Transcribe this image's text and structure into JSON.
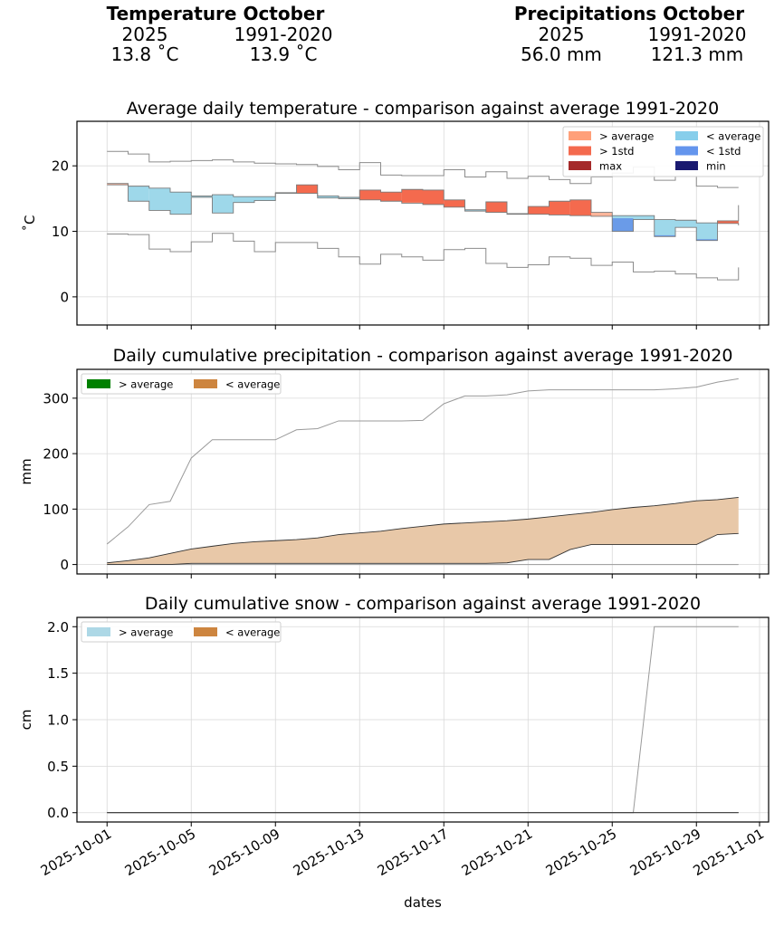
{
  "header": {
    "temperature": {
      "title": "Temperature October",
      "col_current": "2025",
      "col_reference": "1991-2020",
      "val_current": "13.8 ˚C",
      "val_reference": "13.9 ˚C"
    },
    "precipitation": {
      "title": "Precipitations October",
      "col_current": "2025",
      "col_reference": "1991-2020",
      "val_current": "56.0 mm",
      "val_reference": "121.3 mm"
    }
  },
  "chart_data": [
    {
      "type": "line",
      "title": "Average daily temperature - comparison against average 1991-2020",
      "xlabel": "",
      "ylabel": "˚C",
      "x": [
        "2025-10-01",
        "2025-10-02",
        "2025-10-03",
        "2025-10-04",
        "2025-10-05",
        "2025-10-06",
        "2025-10-07",
        "2025-10-08",
        "2025-10-09",
        "2025-10-10",
        "2025-10-11",
        "2025-10-12",
        "2025-10-13",
        "2025-10-14",
        "2025-10-15",
        "2025-10-16",
        "2025-10-17",
        "2025-10-18",
        "2025-10-19",
        "2025-10-20",
        "2025-10-21",
        "2025-10-22",
        "2025-10-23",
        "2025-10-24",
        "2025-10-25",
        "2025-10-26",
        "2025-10-27",
        "2025-10-28",
        "2025-10-29",
        "2025-10-30",
        "2025-10-31"
      ],
      "yticks": [
        0,
        10,
        20
      ],
      "ylim": [
        -4.3,
        26.8
      ],
      "grid": true,
      "legend_position": "top-right",
      "legend": [
        {
          "label": "> average",
          "color": "#FFA07A"
        },
        {
          "label": "< average",
          "color": "#87CEEB"
        },
        {
          "label": "> 1std",
          "color": "#F46A4E"
        },
        {
          "label": "< 1std",
          "color": "#6495ED"
        },
        {
          "label": "max",
          "color": "#A52A2A"
        },
        {
          "label": "min",
          "color": "#191970"
        }
      ],
      "series": [
        {
          "name": "2025",
          "values": [
            17.3,
            14.6,
            13.2,
            12.6,
            15.2,
            12.8,
            14.4,
            14.7,
            15.8,
            17.1,
            15.1,
            15.0,
            16.3,
            16.0,
            16.4,
            16.3,
            14.8,
            13.1,
            14.5,
            12.7,
            13.8,
            14.6,
            14.8,
            12.9,
            10.0,
            11.8,
            9.2,
            10.6,
            8.6,
            11.6,
            14.0
          ]
        },
        {
          "name": "average 1991-2020",
          "values": [
            17.1,
            16.9,
            16.6,
            16.0,
            15.4,
            15.6,
            15.3,
            15.3,
            15.9,
            15.8,
            15.4,
            15.2,
            14.8,
            14.6,
            14.3,
            14.1,
            13.7,
            13.3,
            12.9,
            12.6,
            12.6,
            12.5,
            12.4,
            12.3,
            12.4,
            12.4,
            11.8,
            11.7,
            11.3,
            11.2,
            10.9
          ]
        },
        {
          "name": "avg + 1std",
          "values": [
            17.3,
            16.9,
            16.7,
            16.0,
            15.4,
            15.6,
            15.4,
            15.3,
            15.9,
            15.8,
            15.4,
            15.2,
            14.8,
            14.6,
            14.4,
            14.1,
            13.7,
            13.3,
            12.9,
            12.6,
            12.6,
            12.5,
            12.4,
            12.9,
            12.6,
            12.4,
            11.8,
            11.7,
            11.3,
            11.2,
            10.9
          ]
        },
        {
          "name": "avg - 1std",
          "values": [
            17.1,
            14.6,
            13.2,
            12.6,
            15.2,
            12.8,
            14.4,
            14.7,
            15.8,
            15.8,
            15.1,
            15.0,
            14.8,
            14.6,
            14.3,
            14.1,
            13.7,
            13.1,
            12.9,
            12.6,
            12.6,
            12.5,
            12.4,
            12.3,
            12.0,
            11.8,
            9.4,
            10.6,
            8.8,
            11.2,
            10.9
          ]
        },
        {
          "name": "max",
          "values": [
            22.2,
            21.8,
            20.6,
            20.7,
            20.8,
            20.9,
            20.6,
            20.4,
            20.3,
            20.2,
            19.9,
            19.4,
            20.5,
            18.6,
            18.5,
            18.5,
            19.4,
            18.3,
            19.1,
            18.1,
            18.4,
            17.9,
            17.3,
            18.3,
            18.9,
            19.8,
            17.8,
            18.4,
            16.9,
            16.7,
            16.7
          ]
        },
        {
          "name": "min",
          "values": [
            9.6,
            9.5,
            7.3,
            6.9,
            8.4,
            9.7,
            8.5,
            6.9,
            8.3,
            8.3,
            7.4,
            6.1,
            5.0,
            6.5,
            6.1,
            5.6,
            7.2,
            7.4,
            5.1,
            4.5,
            4.9,
            6.1,
            5.9,
            4.8,
            5.3,
            3.8,
            3.9,
            3.5,
            2.9,
            2.6,
            4.5
          ]
        }
      ]
    },
    {
      "type": "area",
      "title": "Daily cumulative precipitation - comparison against average 1991-2020",
      "xlabel": "",
      "ylabel": "mm",
      "x": [
        "2025-10-01",
        "2025-10-02",
        "2025-10-03",
        "2025-10-04",
        "2025-10-05",
        "2025-10-06",
        "2025-10-07",
        "2025-10-08",
        "2025-10-09",
        "2025-10-10",
        "2025-10-11",
        "2025-10-12",
        "2025-10-13",
        "2025-10-14",
        "2025-10-15",
        "2025-10-16",
        "2025-10-17",
        "2025-10-18",
        "2025-10-19",
        "2025-10-20",
        "2025-10-21",
        "2025-10-22",
        "2025-10-23",
        "2025-10-24",
        "2025-10-25",
        "2025-10-26",
        "2025-10-27",
        "2025-10-28",
        "2025-10-29",
        "2025-10-30",
        "2025-10-31"
      ],
      "yticks": [
        0,
        100,
        200,
        300
      ],
      "ylim": [
        -17,
        352
      ],
      "grid": true,
      "legend_position": "top-left",
      "legend": [
        {
          "label": "> average",
          "color": "#008000"
        },
        {
          "label": "< average",
          "color": "#CD853F"
        }
      ],
      "series": [
        {
          "name": "2025",
          "values": [
            0,
            0,
            0,
            0,
            2,
            2,
            2,
            2,
            2,
            2,
            2,
            2,
            2,
            2,
            2,
            2,
            2,
            2,
            2,
            3,
            9,
            9,
            27,
            36,
            36,
            36,
            36,
            36,
            36,
            54,
            56
          ]
        },
        {
          "name": "average 1991-2020",
          "values": [
            3,
            7,
            12,
            20,
            28,
            33,
            38,
            41,
            43,
            45,
            48,
            54,
            57,
            60,
            65,
            69,
            73,
            75,
            77,
            79,
            82,
            86,
            90,
            94,
            99,
            103,
            106,
            110,
            115,
            117,
            121
          ]
        },
        {
          "name": "max",
          "values": [
            37,
            68,
            108,
            114,
            192,
            225,
            225,
            225,
            225,
            243,
            245,
            259,
            259,
            259,
            259,
            260,
            290,
            304,
            304,
            306,
            313,
            315,
            315,
            315,
            315,
            315,
            315,
            317,
            320,
            329,
            335
          ]
        },
        {
          "name": "min",
          "values": [
            0,
            0,
            0,
            0,
            0,
            0,
            0,
            0,
            0,
            0,
            0,
            0,
            0,
            0,
            0,
            0,
            0,
            0,
            0,
            0,
            0,
            0,
            0,
            0,
            0,
            0,
            0,
            0,
            0,
            0,
            0
          ]
        }
      ]
    },
    {
      "type": "line",
      "title": "Daily cumulative snow - comparison against average 1991-2020",
      "xlabel": "dates",
      "ylabel": "cm",
      "x": [
        "2025-10-01",
        "2025-10-02",
        "2025-10-03",
        "2025-10-04",
        "2025-10-05",
        "2025-10-06",
        "2025-10-07",
        "2025-10-08",
        "2025-10-09",
        "2025-10-10",
        "2025-10-11",
        "2025-10-12",
        "2025-10-13",
        "2025-10-14",
        "2025-10-15",
        "2025-10-16",
        "2025-10-17",
        "2025-10-18",
        "2025-10-19",
        "2025-10-20",
        "2025-10-21",
        "2025-10-22",
        "2025-10-23",
        "2025-10-24",
        "2025-10-25",
        "2025-10-26",
        "2025-10-27",
        "2025-10-28",
        "2025-10-29",
        "2025-10-30",
        "2025-10-31"
      ],
      "yticks": [
        0.0,
        0.5,
        1.0,
        1.5,
        2.0
      ],
      "ytick_labels": [
        "0.0",
        "0.5",
        "1.0",
        "1.5",
        "2.0"
      ],
      "ylim": [
        -0.1,
        2.1
      ],
      "grid": true,
      "legend_position": "top-left",
      "legend": [
        {
          "label": "> average",
          "color": "#ADD8E6"
        },
        {
          "label": "< average",
          "color": "#CD853F"
        }
      ],
      "series": [
        {
          "name": "2025",
          "values": [
            0,
            0,
            0,
            0,
            0,
            0,
            0,
            0,
            0,
            0,
            0,
            0,
            0,
            0,
            0,
            0,
            0,
            0,
            0,
            0,
            0,
            0,
            0,
            0,
            0,
            0,
            0,
            0,
            0,
            0,
            0
          ]
        },
        {
          "name": "average 1991-2020",
          "values": [
            0,
            0,
            0,
            0,
            0,
            0,
            0,
            0,
            0,
            0,
            0,
            0,
            0,
            0,
            0,
            0,
            0,
            0,
            0,
            0,
            0,
            0,
            0,
            0,
            0,
            0,
            0,
            0,
            0,
            0,
            0
          ]
        },
        {
          "name": "max",
          "values": [
            0,
            0,
            0,
            0,
            0,
            0,
            0,
            0,
            0,
            0,
            0,
            0,
            0,
            0,
            0,
            0,
            0,
            0,
            0,
            0,
            0,
            0,
            0,
            0,
            0,
            0,
            2,
            2,
            2,
            2,
            2
          ]
        }
      ]
    }
  ],
  "x_axis": {
    "label": "dates",
    "ticks": [
      "2025-10-01",
      "2025-10-05",
      "2025-10-09",
      "2025-10-13",
      "2025-10-17",
      "2025-10-21",
      "2025-10-25",
      "2025-10-29",
      "2025-11-01"
    ]
  }
}
